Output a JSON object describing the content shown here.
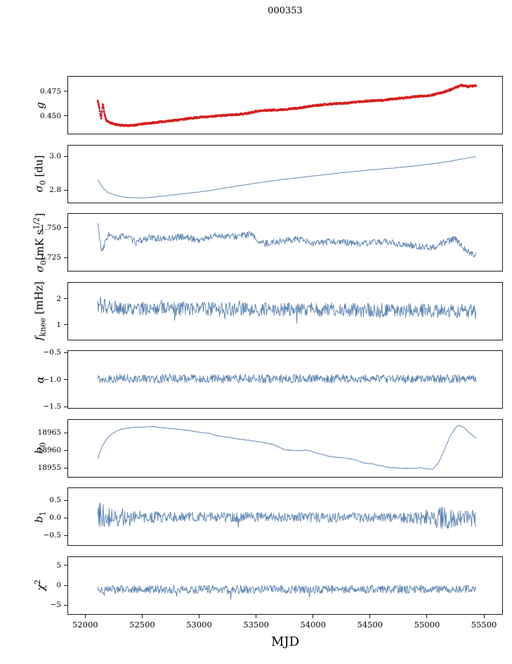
{
  "title": "000353",
  "xlabel": "MJD",
  "chart_data": {
    "type": "line",
    "grid": false,
    "legend": "none",
    "shared_x": {
      "label": "MJD",
      "xlim": [
        51850,
        55660
      ],
      "data_x_range": [
        52110,
        55430
      ],
      "ticks": [
        {
          "v": 52000,
          "label": "52000"
        },
        {
          "v": 52500,
          "label": "52500"
        },
        {
          "v": 53000,
          "label": "53000"
        },
        {
          "v": 53500,
          "label": "53500"
        },
        {
          "v": 54000,
          "label": "54000"
        },
        {
          "v": 54500,
          "label": "54500"
        },
        {
          "v": 55000,
          "label": "55000"
        },
        {
          "v": 55500,
          "label": "55500"
        }
      ]
    },
    "line_color": "#5a82af",
    "scatter_color": "#d62020",
    "panels": [
      {
        "id": "g",
        "ylabel_html": "<i>g</i>",
        "ylim": [
          0.432,
          0.49
        ],
        "yticks": [
          {
            "v": 0.475,
            "label": "0.475"
          },
          {
            "v": 0.45,
            "label": "0.450"
          }
        ],
        "points": 900,
        "seed": 11,
        "noise": 0.0007,
        "scatter_overlay": {
          "color": "#d62020",
          "radius": 1.5
        },
        "trend": [
          [
            52110,
            0.4655
          ],
          [
            52125,
            0.4575
          ],
          [
            52140,
            0.447
          ],
          [
            52155,
            0.4625
          ],
          [
            52170,
            0.452
          ],
          [
            52185,
            0.4455
          ],
          [
            52210,
            0.4435
          ],
          [
            52260,
            0.4415
          ],
          [
            52320,
            0.4405
          ],
          [
            52400,
            0.4402
          ],
          [
            52500,
            0.4418
          ],
          [
            52650,
            0.4438
          ],
          [
            52800,
            0.4458
          ],
          [
            53000,
            0.4487
          ],
          [
            53100,
            0.4494
          ],
          [
            53200,
            0.4505
          ],
          [
            53300,
            0.4512
          ],
          [
            53400,
            0.4522
          ],
          [
            53500,
            0.4548
          ],
          [
            53600,
            0.4558
          ],
          [
            53700,
            0.4562
          ],
          [
            53800,
            0.4572
          ],
          [
            53900,
            0.4584
          ],
          [
            54000,
            0.4604
          ],
          [
            54100,
            0.4617
          ],
          [
            54200,
            0.4626
          ],
          [
            54300,
            0.4632
          ],
          [
            54400,
            0.4645
          ],
          [
            54500,
            0.4654
          ],
          [
            54600,
            0.4658
          ],
          [
            54700,
            0.4672
          ],
          [
            54800,
            0.4684
          ],
          [
            54900,
            0.4697
          ],
          [
            55000,
            0.4706
          ],
          [
            55050,
            0.4714
          ],
          [
            55100,
            0.4729
          ],
          [
            55150,
            0.4745
          ],
          [
            55200,
            0.4764
          ],
          [
            55250,
            0.4788
          ],
          [
            55300,
            0.4812
          ],
          [
            55330,
            0.4808
          ],
          [
            55360,
            0.4798
          ],
          [
            55390,
            0.4804
          ],
          [
            55430,
            0.4806
          ]
        ]
      },
      {
        "id": "sigma0-du",
        "ylabel_html": "<i>σ</i><sub>0</sub> [du]",
        "ylim": [
          2.728,
          3.065
        ],
        "yticks": [
          {
            "v": 3.0,
            "label": "3.0"
          },
          {
            "v": 2.8,
            "label": "2.8"
          }
        ],
        "points": 600,
        "seed": 22,
        "noise": 0.0015,
        "trend": [
          [
            52110,
            2.863
          ],
          [
            52150,
            2.82
          ],
          [
            52200,
            2.787
          ],
          [
            52300,
            2.765
          ],
          [
            52400,
            2.757
          ],
          [
            52500,
            2.756
          ],
          [
            52600,
            2.76
          ],
          [
            52700,
            2.768
          ],
          [
            52900,
            2.783
          ],
          [
            53100,
            2.8
          ],
          [
            53300,
            2.822
          ],
          [
            53500,
            2.843
          ],
          [
            53700,
            2.862
          ],
          [
            53900,
            2.877
          ],
          [
            54100,
            2.893
          ],
          [
            54300,
            2.908
          ],
          [
            54500,
            2.921
          ],
          [
            54700,
            2.932
          ],
          [
            54900,
            2.945
          ],
          [
            55100,
            2.962
          ],
          [
            55200,
            2.972
          ],
          [
            55300,
            2.985
          ],
          [
            55430,
            3.0
          ]
        ]
      },
      {
        "id": "sigma0-mK",
        "ylabel_html": "<i>σ</i><sub>0</sub>[mK s<sup>1/2</sup>]",
        "ylim": [
          1.714,
          1.7615
        ],
        "yticks": [
          {
            "v": 1.75,
            "label": "1.750"
          },
          {
            "v": 1.725,
            "label": "1.725"
          }
        ],
        "points": 700,
        "seed": 33,
        "noise": 0.0028,
        "trend": [
          [
            52110,
            1.7535
          ],
          [
            52145,
            1.7285
          ],
          [
            52200,
            1.7445
          ],
          [
            52260,
            1.7405
          ],
          [
            52350,
            1.7435
          ],
          [
            52450,
            1.7375
          ],
          [
            52550,
            1.7415
          ],
          [
            52700,
            1.7405
          ],
          [
            52850,
            1.7425
          ],
          [
            53000,
            1.7395
          ],
          [
            53150,
            1.7435
          ],
          [
            53300,
            1.7425
          ],
          [
            53450,
            1.7445
          ],
          [
            53550,
            1.7365
          ],
          [
            53700,
            1.7385
          ],
          [
            53850,
            1.7405
          ],
          [
            54000,
            1.7365
          ],
          [
            54150,
            1.7385
          ],
          [
            54300,
            1.7375
          ],
          [
            54450,
            1.7365
          ],
          [
            54600,
            1.7385
          ],
          [
            54750,
            1.7365
          ],
          [
            54900,
            1.7345
          ],
          [
            55050,
            1.7335
          ],
          [
            55150,
            1.7375
          ],
          [
            55250,
            1.7405
          ],
          [
            55320,
            1.7335
          ],
          [
            55380,
            1.7285
          ],
          [
            55430,
            1.7275
          ]
        ]
      },
      {
        "id": "fknee",
        "ylabel_html": "<i>f</i><sub>knee</sub> [mHz]",
        "ylim": [
          0.45,
          2.62
        ],
        "yticks": [
          {
            "v": 2,
            "label": "2"
          },
          {
            "v": 1,
            "label": "1"
          }
        ],
        "points": 700,
        "seed": 44,
        "noise": 0.27,
        "spike_prob": 0.02,
        "spike_amp": 0.5,
        "spike_bias": 0,
        "trend": [
          [
            52110,
            1.75
          ],
          [
            52300,
            1.65
          ],
          [
            53000,
            1.62
          ],
          [
            54000,
            1.6
          ],
          [
            55000,
            1.55
          ],
          [
            55430,
            1.55
          ]
        ]
      },
      {
        "id": "alpha",
        "ylabel_html": "<i>α</i>",
        "ylim": [
          -1.52,
          -0.47
        ],
        "yticks": [
          {
            "v": -0.5,
            "label": "−0.5"
          },
          {
            "v": -1.0,
            "label": "−1.0"
          },
          {
            "v": -1.5,
            "label": "−1.5"
          }
        ],
        "points": 700,
        "seed": 55,
        "noise": 0.08,
        "trend": [
          [
            52110,
            -0.98
          ],
          [
            55430,
            -0.98
          ]
        ]
      },
      {
        "id": "b0",
        "ylabel_html": "<i>b</i><sub>0</sub>",
        "ylim": [
          18952.5,
          18968.8
        ],
        "yticks": [
          {
            "v": 18965,
            "label": "18965"
          },
          {
            "v": 18960,
            "label": "18960"
          },
          {
            "v": 18955,
            "label": "18955"
          }
        ],
        "points": 600,
        "seed": 66,
        "noise": 0.12,
        "trend": [
          [
            52110,
            18957.8
          ],
          [
            52150,
            18961.5
          ],
          [
            52200,
            18963.8
          ],
          [
            52250,
            18965.2
          ],
          [
            52300,
            18966.0
          ],
          [
            52400,
            18966.6
          ],
          [
            52500,
            18966.8
          ],
          [
            52600,
            18966.9
          ],
          [
            52700,
            18966.5
          ],
          [
            52800,
            18966.2
          ],
          [
            52900,
            18965.8
          ],
          [
            53000,
            18965.3
          ],
          [
            53100,
            18964.9
          ],
          [
            53150,
            18964.3
          ],
          [
            53250,
            18963.9
          ],
          [
            53350,
            18963.3
          ],
          [
            53450,
            18962.9
          ],
          [
            53550,
            18962.4
          ],
          [
            53650,
            18961.8
          ],
          [
            53750,
            18960.3
          ],
          [
            53850,
            18960.0
          ],
          [
            53950,
            18960.2
          ],
          [
            54050,
            18959.2
          ],
          [
            54150,
            18958.3
          ],
          [
            54250,
            18958.0
          ],
          [
            54350,
            18957.6
          ],
          [
            54450,
            18956.5
          ],
          [
            54550,
            18956.0
          ],
          [
            54650,
            18955.3
          ],
          [
            54750,
            18955.0
          ],
          [
            54850,
            18954.9
          ],
          [
            54950,
            18955.1
          ],
          [
            55000,
            18954.8
          ],
          [
            55050,
            18954.6
          ],
          [
            55100,
            18956.5
          ],
          [
            55150,
            18960.0
          ],
          [
            55200,
            18964.0
          ],
          [
            55250,
            18966.5
          ],
          [
            55280,
            18967.3
          ],
          [
            55320,
            18966.8
          ],
          [
            55370,
            18965.2
          ],
          [
            55430,
            18963.6
          ]
        ]
      },
      {
        "id": "b1",
        "ylabel_html": "<i>b</i><sub>1</sub>",
        "ylim": [
          -0.78,
          0.85
        ],
        "yticks": [
          {
            "v": 0.5,
            "label": "0.5"
          },
          {
            "v": 0.0,
            "label": "0.0"
          },
          {
            "v": -0.5,
            "label": "−0.5"
          }
        ],
        "points": 700,
        "seed": 77,
        "noise": 0.15,
        "noise_profile": [
          [
            52110,
            0.42
          ],
          [
            52250,
            0.3
          ],
          [
            52450,
            0.18
          ],
          [
            53000,
            0.14
          ],
          [
            54500,
            0.14
          ],
          [
            54900,
            0.16
          ],
          [
            55050,
            0.3
          ],
          [
            55200,
            0.34
          ],
          [
            55300,
            0.22
          ],
          [
            55430,
            0.28
          ]
        ],
        "spike_prob": 0.01,
        "spike_amp": 0.25,
        "spike_bias": 0,
        "trend": [
          [
            52110,
            0.15
          ],
          [
            52160,
            0.02
          ],
          [
            53000,
            0.02
          ],
          [
            55430,
            0.0
          ]
        ]
      },
      {
        "id": "chi2",
        "ylabel_html": "<i>χ</i><sup>2</sup>",
        "ylim": [
          -7.2,
          7.2
        ],
        "yticks": [
          {
            "v": 5,
            "label": "5"
          },
          {
            "v": 0,
            "label": "0"
          },
          {
            "v": -5,
            "label": "−5"
          }
        ],
        "points": 700,
        "seed": 88,
        "noise": 1.05,
        "spike_prob": 0.015,
        "spike_amp": 2.2,
        "spike_bias": -1,
        "trend": [
          [
            52110,
            -1.0
          ],
          [
            55430,
            -0.9
          ]
        ]
      }
    ]
  }
}
